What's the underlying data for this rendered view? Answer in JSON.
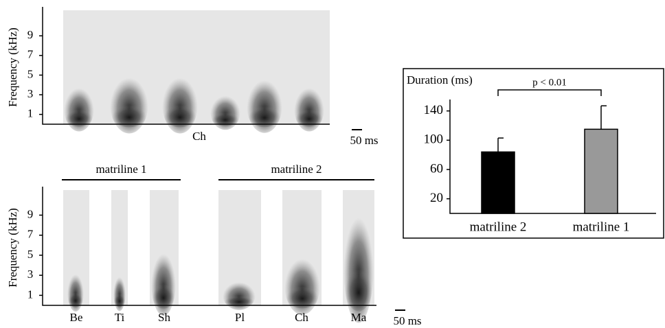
{
  "chart_data": {
    "type": "bar",
    "title": "Duration (ms)",
    "annotation": "p < 0.01",
    "categories": [
      "matriline 2",
      "matriline 1"
    ],
    "values": [
      84,
      115
    ],
    "errors": [
      19,
      32
    ],
    "colors": [
      "#000000",
      "#999999"
    ],
    "ylim": [
      0,
      150
    ],
    "yticks": [
      20,
      60,
      100,
      140
    ]
  },
  "spectrograms": {
    "top": {
      "ylabel": "Frequency (kHz)",
      "ylim": [
        0,
        11.6
      ],
      "yticks": [
        1,
        3,
        5,
        7,
        9
      ],
      "labels": [
        "Ch"
      ],
      "scale": "50 ms"
    },
    "bottom": {
      "ylabel": "Frequency (kHz)",
      "ylim": [
        0,
        11.5
      ],
      "yticks": [
        1,
        3,
        5,
        7,
        9
      ],
      "groups": [
        "matriline 1",
        "matriline 2"
      ],
      "labels": [
        "Be",
        "Ti",
        "Sh",
        "Pl",
        "Ch",
        "Ma"
      ],
      "scale": "50 ms"
    }
  }
}
